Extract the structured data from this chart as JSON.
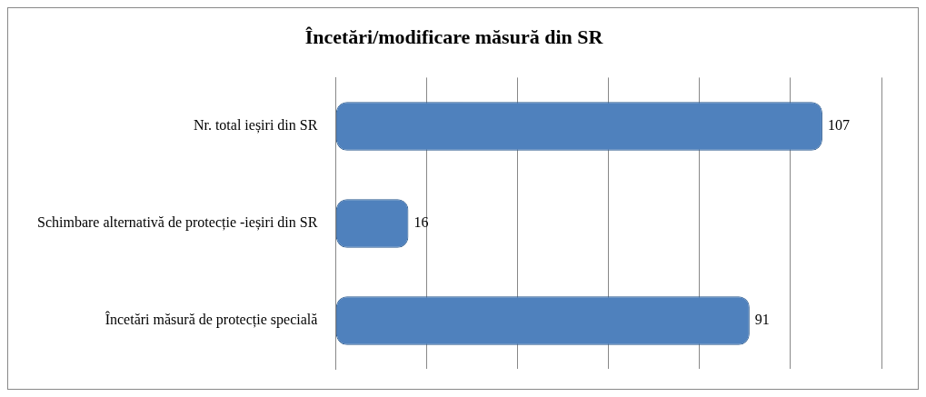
{
  "chart_data": {
    "type": "bar",
    "orientation": "horizontal",
    "title": "Încetări/modificare măsură din SR",
    "categories": [
      "Nr. total ieșiri din SR",
      "Schimbare alternativă de protecție -ieșiri din SR",
      "Încetări măsură de protecție specială"
    ],
    "values": [
      107,
      16,
      91
    ],
    "color": "#4f81bd",
    "xlim": [
      0,
      120
    ],
    "xticks": [
      {
        "value": 0,
        "label": null
      },
      {
        "value": 20,
        "label": null
      },
      {
        "value": 40,
        "label": null
      },
      {
        "value": 60,
        "label": null
      },
      {
        "value": 80,
        "label": null
      },
      {
        "value": 100,
        "label": null
      },
      {
        "value": 120,
        "label": null
      }
    ],
    "tick_labels": "y",
    "grid": "x",
    "data_labels": true,
    "legend": false
  }
}
